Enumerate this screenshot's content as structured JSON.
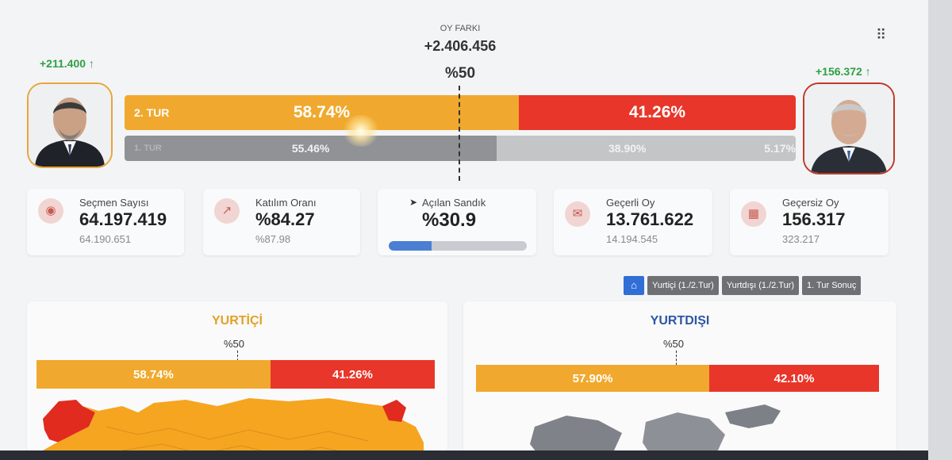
{
  "header": {
    "diff_caption": "OY FARKI",
    "diff_value": "+2.406.456",
    "half_label": "%50",
    "menu_icon": "grid-icon"
  },
  "candidates": {
    "left": {
      "gain": "+211.400 ↑",
      "color": "#f0a92e"
    },
    "right": {
      "gain": "+156.372 ↑",
      "color": "#e8362a"
    }
  },
  "round2": {
    "label": "2. TUR",
    "left_pct": "58.74%",
    "right_pct": "41.26%",
    "left_value": 58.74,
    "right_value": 41.26
  },
  "round1": {
    "label": "1. TUR",
    "a_pct": "55.46%",
    "b_pct": "38.90%",
    "c_pct": "5.17%",
    "a_value": 55.46,
    "b_value": 38.9,
    "c_value": 5.17
  },
  "stats": {
    "voters": {
      "label": "Seçmen Sayısı",
      "value": "64.197.419",
      "sub": "64.190.651",
      "icon": "people-icon"
    },
    "turnout": {
      "label": "Katılım Oranı",
      "value": "%84.27",
      "sub": "%87.98",
      "icon": "chart-icon"
    },
    "opened": {
      "label": "Açılan Sandık",
      "value": "%30.9",
      "progress": 30.9
    },
    "valid": {
      "label": "Geçerli Oy",
      "value": "13.761.622",
      "sub": "14.194.545",
      "icon": "ballot-icon"
    },
    "invalid": {
      "label": "Geçersiz Oy",
      "value": "156.317",
      "sub": "323.217",
      "icon": "calendar-icon"
    }
  },
  "nav": {
    "home_icon": "home-icon",
    "buttons": [
      "Yurtiçi (1./2.Tur)",
      "Yurtdışı (1./2.Tur)",
      "1. Tur Sonuç"
    ]
  },
  "domestic": {
    "title": "YURTİÇİ",
    "half": "%50",
    "left_pct": "58.74%",
    "right_pct": "41.26%",
    "left_value": 58.74
  },
  "abroad": {
    "title": "YURTDIŞI",
    "half": "%50",
    "left_pct": "57.90%",
    "right_pct": "42.10%",
    "left_value": 57.9
  },
  "colors": {
    "orange": "#f0a92e",
    "red": "#e8362a",
    "grey_dark": "#909295",
    "grey_light": "#c4c5c7",
    "title_orange": "#e3a126",
    "title_blue": "#2d57a4"
  }
}
